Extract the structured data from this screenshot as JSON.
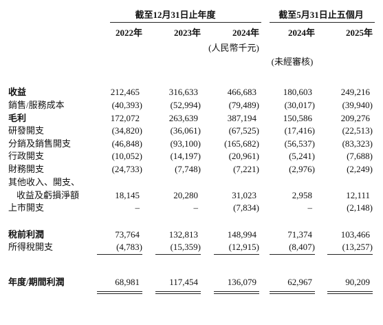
{
  "header": {
    "period_groups": [
      "截至12月31日止年度",
      "截至5月31日止五個月"
    ],
    "columns": [
      "2022年",
      "2023年",
      "2024年",
      "2024年",
      "2025年"
    ],
    "unit": "(人民幣千元)",
    "unaudited": "(未經審核)"
  },
  "table": {
    "rows": [
      {
        "label": "收益",
        "values": [
          "212,465",
          "316,633",
          "466,683",
          "180,603",
          "249,216"
        ]
      },
      {
        "label": "銷售/服務成本",
        "values": [
          "(40,393)",
          "(52,994)",
          "(79,489)",
          "(30,017)",
          "(39,940)"
        ]
      },
      {
        "label": "毛利",
        "values": [
          "172,072",
          "263,639",
          "387,194",
          "150,586",
          "209,276"
        ]
      },
      {
        "label": "研發開支",
        "values": [
          "(34,820)",
          "(36,061)",
          "(67,525)",
          "(17,416)",
          "(22,513)"
        ]
      },
      {
        "label": "分銷及銷售開支",
        "values": [
          "(46,848)",
          "(93,100)",
          "(165,682)",
          "(56,537)",
          "(83,323)"
        ]
      },
      {
        "label": "行政開支",
        "values": [
          "(10,052)",
          "(14,197)",
          "(20,961)",
          "(5,241)",
          "(7,688)"
        ]
      },
      {
        "label": "財務開支",
        "values": [
          "(24,733)",
          "(7,748)",
          "(7,221)",
          "(2,976)",
          "(2,249)"
        ]
      },
      {
        "label": "其他收入、開支、"
      },
      {
        "label": "收益及虧損淨額",
        "values": [
          "18,145",
          "20,280",
          "31,023",
          "2,958",
          "12,111"
        ]
      },
      {
        "label": "上市開支",
        "values": [
          "–",
          "–",
          "(7,834)",
          "–",
          "(2,148)"
        ]
      },
      {
        "label": "稅前利潤",
        "values": [
          "73,764",
          "132,813",
          "148,994",
          "71,374",
          "103,466"
        ]
      },
      {
        "label": "所得稅開支",
        "values": [
          "(4,783)",
          "(15,359)",
          "(12,915)",
          "(8,407)",
          "(13,257)"
        ]
      },
      {
        "label": "年度/期間利潤",
        "values": [
          "68,981",
          "117,454",
          "136,079",
          "62,967",
          "90,209"
        ]
      }
    ]
  }
}
